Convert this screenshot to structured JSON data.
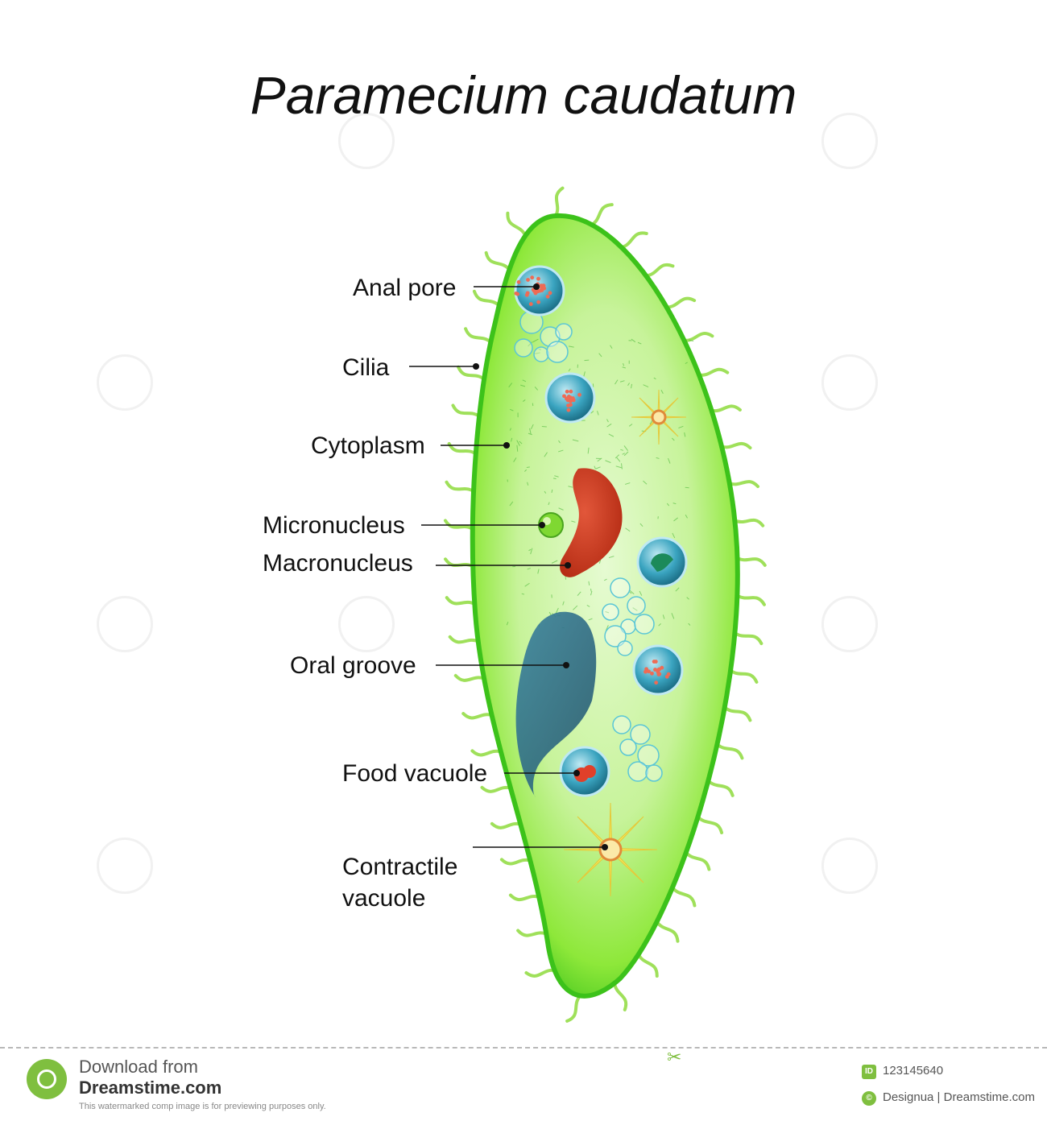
{
  "title": "Paramecium caudatum",
  "labels": {
    "anal_pore": "Anal pore",
    "cilia": "Cilia",
    "cytoplasm": "Cytoplasm",
    "micronucleus": "Micronucleus",
    "macronucleus": "Macronucleus",
    "oral_groove": "Oral groove",
    "food_vacuole": "Food vacuole",
    "contractile_vacuole_line1": "Contractile",
    "contractile_vacuole_line2": "vacuole"
  },
  "footer": {
    "download_from": "Download from",
    "brand": "Dreamstime.com",
    "note": "This watermarked comp image is for previewing purposes only.",
    "id_badge": "ID",
    "image_id": "123145640",
    "credit": "Designua | Dreamstime.com"
  },
  "colors": {
    "cell_body": "#8ee83a",
    "cell_edge": "#3cc21a",
    "cilia": "#9fe05a",
    "macronucleus": "#c83a1c",
    "micronucleus": "#7fd832",
    "oral_groove": "#2f6f86",
    "vacuole": "#2e9bb7",
    "contractile": "#f2e65a"
  }
}
